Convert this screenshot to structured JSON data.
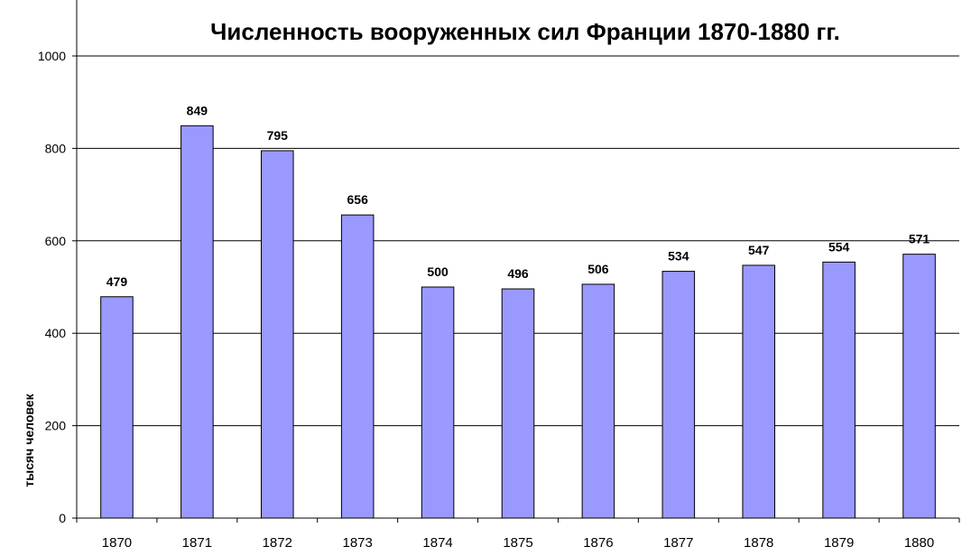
{
  "chart_data": {
    "type": "bar",
    "title": "Численность вооруженных сил Франции 1870-1880 гг.",
    "xlabel": "",
    "ylabel": "тысяч человек",
    "categories": [
      "1870",
      "1871",
      "1872",
      "1873",
      "1874",
      "1875",
      "1876",
      "1877",
      "1878",
      "1879",
      "1880"
    ],
    "values": [
      479,
      849,
      795,
      656,
      500,
      496,
      506,
      534,
      547,
      554,
      571
    ],
    "ylim": [
      0,
      1000
    ],
    "yticks": [
      0,
      200,
      400,
      600,
      800,
      1000
    ],
    "grid": true,
    "legend": "none",
    "bar_color": "#9999ff",
    "bar_stroke": "#000000"
  }
}
